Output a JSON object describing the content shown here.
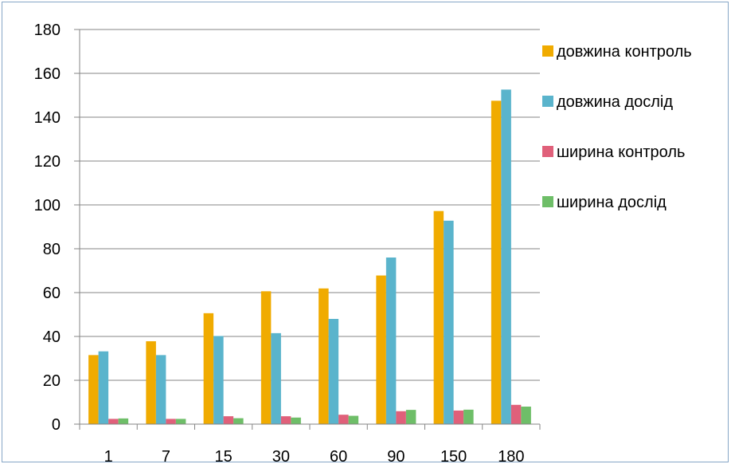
{
  "chart_data": {
    "type": "bar",
    "title": "",
    "xlabel": "",
    "ylabel": "",
    "categories": [
      "1",
      "7",
      "15",
      "30",
      "60",
      "90",
      "150",
      "180"
    ],
    "ylim": [
      0,
      180
    ],
    "yticks": [
      "0",
      "20",
      "40",
      "60",
      "80",
      "100",
      "120",
      "140",
      "160",
      "180"
    ],
    "grid": "horizontal",
    "legend_position": "right",
    "series": [
      {
        "name": "довжина контроль",
        "color": "#f0ab00",
        "values": [
          31.5,
          37.8,
          50.6,
          60.6,
          61.9,
          67.8,
          97.2,
          147.5
        ]
      },
      {
        "name": "довжина дослід",
        "color": "#5ab4cc",
        "values": [
          33.2,
          31.5,
          40.2,
          41.5,
          48.0,
          76.0,
          92.8,
          152.6
        ]
      },
      {
        "name": "ширина контроль",
        "color": "#e0607a",
        "values": [
          2.4,
          2.4,
          3.6,
          3.6,
          4.3,
          5.9,
          6.2,
          8.8
        ]
      },
      {
        "name": "ширина дослід",
        "color": "#6ebe68",
        "values": [
          2.6,
          2.4,
          2.7,
          3.0,
          3.8,
          6.5,
          6.6,
          8.0
        ]
      }
    ]
  }
}
